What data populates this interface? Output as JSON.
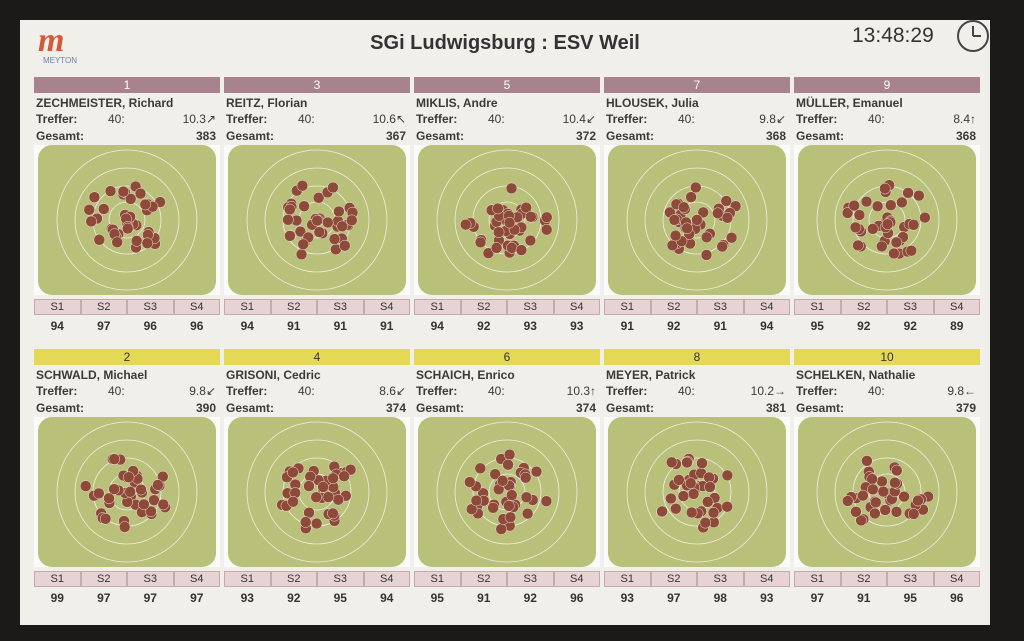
{
  "header": {
    "logo_letter": "m",
    "logo_text": "MEYTON",
    "title": "SGi Ludwigsburg : ESV Weil",
    "time": "13:48:29"
  },
  "labels": {
    "hits": "Treffer:",
    "total": "Gesamt:",
    "series": [
      "S1",
      "S2",
      "S3",
      "S4"
    ]
  },
  "shooters": [
    {
      "pos": "1",
      "name": "ZECHMEISTER, Richard",
      "hits": "40:",
      "last": "10.3",
      "dir": "↗",
      "total": "383",
      "series": [
        "94",
        "97",
        "96",
        "96"
      ]
    },
    {
      "pos": "3",
      "name": "REITZ, Florian",
      "hits": "40:",
      "last": "10.6",
      "dir": "↖",
      "total": "367",
      "series": [
        "94",
        "91",
        "91",
        "91"
      ]
    },
    {
      "pos": "5",
      "name": "MIKLIS, Andre",
      "hits": "40:",
      "last": "10.4",
      "dir": "↙",
      "total": "372",
      "series": [
        "94",
        "92",
        "93",
        "93"
      ]
    },
    {
      "pos": "7",
      "name": "HLOUSEK, Julia",
      "hits": "40:",
      "last": "9.8",
      "dir": "↙",
      "total": "368",
      "series": [
        "91",
        "92",
        "91",
        "94"
      ]
    },
    {
      "pos": "9",
      "name": "MÜLLER, Emanuel",
      "hits": "40:",
      "last": "8.4",
      "dir": "↑",
      "total": "368",
      "series": [
        "95",
        "92",
        "92",
        "89"
      ]
    },
    {
      "pos": "2",
      "name": "SCHWALD, Michael",
      "hits": "40:",
      "last": "9.8",
      "dir": "↙",
      "total": "390",
      "series": [
        "99",
        "97",
        "97",
        "97"
      ]
    },
    {
      "pos": "4",
      "name": "GRISONI, Cedric",
      "hits": "40:",
      "last": "8.6",
      "dir": "↙",
      "total": "374",
      "series": [
        "93",
        "92",
        "95",
        "94"
      ]
    },
    {
      "pos": "6",
      "name": "SCHAICH, Enrico",
      "hits": "40:",
      "last": "10.3",
      "dir": "↑",
      "total": "374",
      "series": [
        "95",
        "91",
        "92",
        "96"
      ]
    },
    {
      "pos": "8",
      "name": "MEYER, Patrick",
      "hits": "40:",
      "last": "10.2",
      "dir": "→",
      "total": "381",
      "series": [
        "93",
        "97",
        "98",
        "93"
      ]
    },
    {
      "pos": "10",
      "name": "SCHELKEN, Nathalie",
      "hits": "40:",
      "last": "9.8",
      "dir": "←",
      "total": "379",
      "series": [
        "97",
        "91",
        "95",
        "96"
      ]
    }
  ],
  "colors": {
    "screen_bg": "#f1efe9",
    "odd_bar": "#a8828c",
    "even_bar": "#e5d855",
    "target": "#b8c07a",
    "shot": "#8e4a38"
  }
}
